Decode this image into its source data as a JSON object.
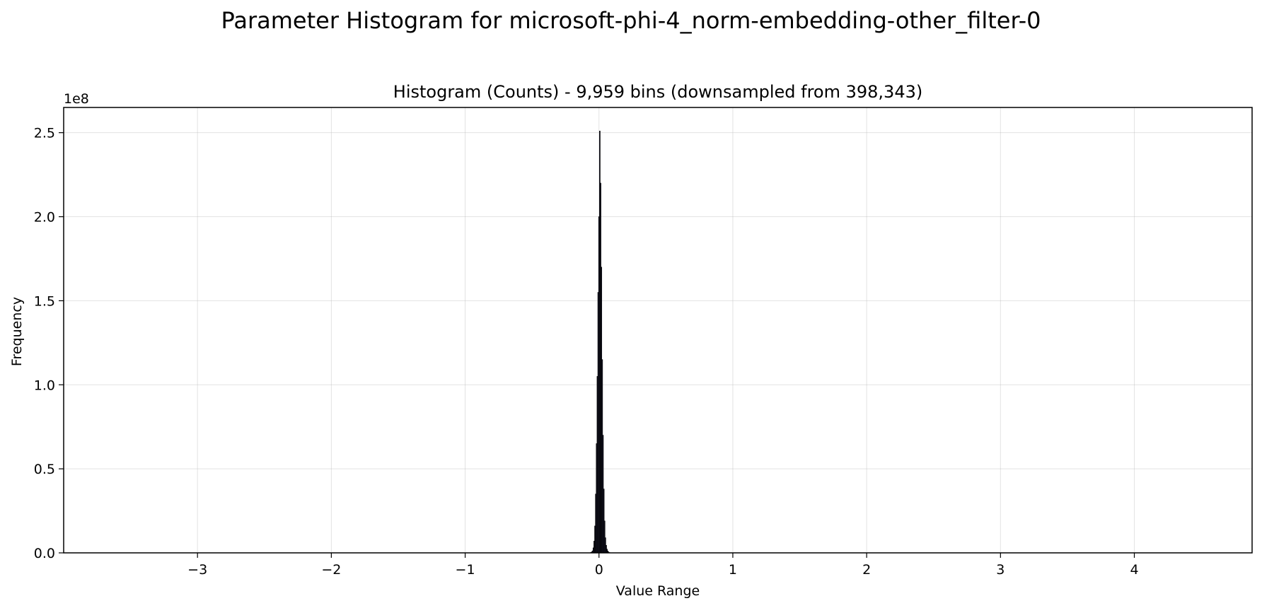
{
  "figure": {
    "suptitle": "Parameter Histogram for microsoft-phi-4_norm-embedding-other_filter-0"
  },
  "chart_data": {
    "type": "bar",
    "title": "Histogram (Counts) - 9,959 bins (downsampled from 398,343)",
    "xlabel": "Value Range",
    "ylabel": "Frequency",
    "y_offset_label": "1e8",
    "y_scale_factor": 100000000,
    "xlim": [
      -4.0,
      4.88
    ],
    "ylim": [
      0,
      2.65
    ],
    "xticks": [
      -3,
      -2,
      -1,
      0,
      1,
      2,
      3,
      4
    ],
    "xtick_labels": [
      "−3",
      "−2",
      "−1",
      "0",
      "1",
      "2",
      "3",
      "4"
    ],
    "yticks": [
      0.0,
      0.5,
      1.0,
      1.5,
      2.0,
      2.5
    ],
    "ytick_labels": [
      "0.0",
      "0.5",
      "1.0",
      "1.5",
      "2.0",
      "2.5"
    ],
    "grid": true,
    "bar_color": "#1a1a2e",
    "edge_color": "#000000",
    "x": [
      -0.06,
      -0.054,
      -0.048,
      -0.042,
      -0.036,
      -0.03,
      -0.024,
      -0.018,
      -0.012,
      -0.006,
      0.0,
      0.006,
      0.012,
      0.018,
      0.024,
      0.03,
      0.036,
      0.042,
      0.048,
      0.054,
      0.06,
      0.066,
      0.072,
      0.078
    ],
    "values": [
      0.003,
      0.006,
      0.012,
      0.03,
      0.07,
      0.16,
      0.35,
      0.65,
      1.05,
      1.55,
      2.0,
      2.51,
      2.2,
      1.7,
      1.15,
      0.7,
      0.38,
      0.19,
      0.09,
      0.045,
      0.022,
      0.011,
      0.005,
      0.002
    ],
    "bin_width": 0.006
  }
}
